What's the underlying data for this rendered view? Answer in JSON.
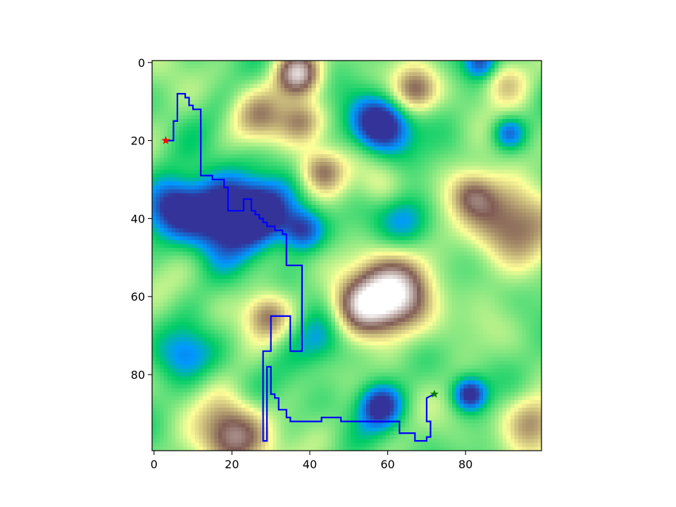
{
  "chart_data": {
    "type": "heatmap",
    "title": "",
    "xlabel": "",
    "ylabel": "",
    "xlim": [
      -0.5,
      99.5
    ],
    "ylim": [
      99.5,
      -0.5
    ],
    "y_inverted": true,
    "grid": false,
    "colormap": "terrain",
    "x_ticks": [
      0,
      20,
      40,
      60,
      80
    ],
    "y_ticks": [
      0,
      20,
      40,
      60,
      80
    ],
    "x_tick_labels": [
      "0",
      "20",
      "40",
      "60",
      "80"
    ],
    "y_tick_labels": [
      "0",
      "20",
      "40",
      "60",
      "80"
    ],
    "terrain_features": [
      {
        "kind": "valley",
        "x": 18,
        "y": 39,
        "spread": 7,
        "depth": 0.55
      },
      {
        "kind": "valley",
        "x": 28,
        "y": 38,
        "spread": 5,
        "depth": 0.35
      },
      {
        "kind": "valley",
        "x": 38,
        "y": 43,
        "spread": 4,
        "depth": 0.4
      },
      {
        "kind": "valley",
        "x": 5,
        "y": 37,
        "spread": 5,
        "depth": 0.35
      },
      {
        "kind": "valley",
        "x": 58,
        "y": 16,
        "spread": 5,
        "depth": 0.5
      },
      {
        "kind": "valley",
        "x": 84,
        "y": 0,
        "spread": 3,
        "depth": 0.3
      },
      {
        "kind": "valley",
        "x": 91,
        "y": 18,
        "spread": 3,
        "depth": 0.3
      },
      {
        "kind": "valley",
        "x": 58,
        "y": 88,
        "spread": 4,
        "depth": 0.4
      },
      {
        "kind": "valley",
        "x": 81,
        "y": 85,
        "spread": 3,
        "depth": 0.4
      },
      {
        "kind": "valley",
        "x": 65,
        "y": 40,
        "spread": 5,
        "depth": 0.2
      },
      {
        "kind": "valley",
        "x": 43,
        "y": 72,
        "spread": 5,
        "depth": 0.2
      },
      {
        "kind": "valley",
        "x": 8,
        "y": 75,
        "spread": 5,
        "depth": 0.2
      },
      {
        "kind": "peak",
        "x": 61,
        "y": 60,
        "spread": 7,
        "height": 0.62
      },
      {
        "kind": "peak",
        "x": 52,
        "y": 62,
        "spread": 5,
        "height": 0.35
      },
      {
        "kind": "peak",
        "x": 37,
        "y": 3,
        "spread": 4,
        "height": 0.55
      },
      {
        "kind": "peak",
        "x": 38,
        "y": 15,
        "spread": 4,
        "height": 0.3
      },
      {
        "kind": "peak",
        "x": 43,
        "y": 28,
        "spread": 4,
        "height": 0.35
      },
      {
        "kind": "peak",
        "x": 67,
        "y": 7,
        "spread": 4,
        "height": 0.35
      },
      {
        "kind": "peak",
        "x": 91,
        "y": 40,
        "spread": 8,
        "height": 0.38
      },
      {
        "kind": "peak",
        "x": 82,
        "y": 34,
        "spread": 4,
        "height": 0.25
      },
      {
        "kind": "peak",
        "x": 27,
        "y": 14,
        "spread": 5,
        "height": 0.25
      },
      {
        "kind": "peak",
        "x": 20,
        "y": 96,
        "spread": 6,
        "height": 0.48
      },
      {
        "kind": "peak",
        "x": 29,
        "y": 65,
        "spread": 4,
        "height": 0.3
      },
      {
        "kind": "peak",
        "x": 97,
        "y": 92,
        "spread": 5,
        "height": 0.3
      },
      {
        "kind": "peak",
        "x": 90,
        "y": 5,
        "spread": 4,
        "height": 0.22
      },
      {
        "kind": "peak",
        "x": 58,
        "y": 32,
        "spread": 4,
        "height": 0.12
      }
    ],
    "series": [
      {
        "type": "line",
        "color": "#0000ff",
        "x": [
          3,
          5,
          5,
          6,
          6,
          8,
          8,
          9,
          9,
          10,
          10,
          12,
          12,
          15,
          15,
          18,
          18,
          19,
          19,
          23,
          23,
          25,
          25,
          26,
          26,
          27,
          27,
          28,
          28,
          29,
          29,
          31,
          31,
          33,
          33,
          34,
          34,
          38,
          38,
          35,
          35,
          30,
          30,
          28,
          28,
          29,
          29,
          30,
          30,
          31,
          31,
          32,
          32,
          34,
          34,
          35,
          35,
          43,
          43,
          48,
          48,
          63,
          63,
          67,
          67,
          70,
          70,
          71,
          71,
          70,
          70,
          72
        ],
        "y": [
          20,
          20,
          15,
          15,
          8,
          8,
          9,
          9,
          11,
          11,
          12,
          12,
          29,
          29,
          30,
          30,
          32,
          32,
          38,
          38,
          35,
          35,
          38,
          38,
          39,
          39,
          40,
          40,
          41,
          41,
          42,
          42,
          43,
          43,
          44,
          44,
          52,
          52,
          74,
          74,
          65,
          65,
          74,
          74,
          97,
          97,
          78,
          78,
          85,
          85,
          86,
          86,
          89,
          89,
          91,
          91,
          92,
          92,
          91,
          91,
          92,
          92,
          95,
          95,
          97,
          97,
          96,
          96,
          92,
          92,
          86,
          85
        ]
      }
    ],
    "markers": [
      {
        "x": 3,
        "y": 20,
        "symbol": "star",
        "color": "#ff0000"
      },
      {
        "x": 72,
        "y": 85,
        "symbol": "star",
        "color": "#008000"
      }
    ]
  }
}
